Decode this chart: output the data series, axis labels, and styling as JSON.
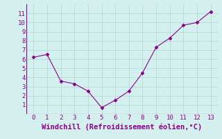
{
  "x": [
    0,
    1,
    2,
    3,
    4,
    5,
    6,
    7,
    8,
    9,
    10,
    11,
    12,
    13
  ],
  "y": [
    6.2,
    6.5,
    3.6,
    3.3,
    2.5,
    0.7,
    1.5,
    2.5,
    4.5,
    7.3,
    8.3,
    9.7,
    10.0,
    11.2
  ],
  "line_color": "#880088",
  "marker_color": "#880088",
  "bg_color": "#d4f0ee",
  "grid_color": "#b0d8d4",
  "xlabel": "Windchill (Refroidissement éolien,°C)",
  "xlabel_color": "#880088",
  "ylim": [
    0,
    12
  ],
  "xlim": [
    -0.5,
    13.5
  ],
  "yticks": [
    1,
    2,
    3,
    4,
    5,
    6,
    7,
    8,
    9,
    10,
    11
  ],
  "xticks": [
    0,
    1,
    2,
    3,
    4,
    5,
    6,
    7,
    8,
    9,
    10,
    11,
    12,
    13
  ],
  "tick_color": "#880088",
  "tick_fontsize": 6.5,
  "xlabel_fontsize": 7.5,
  "marker_size": 2.5,
  "line_width": 0.8
}
